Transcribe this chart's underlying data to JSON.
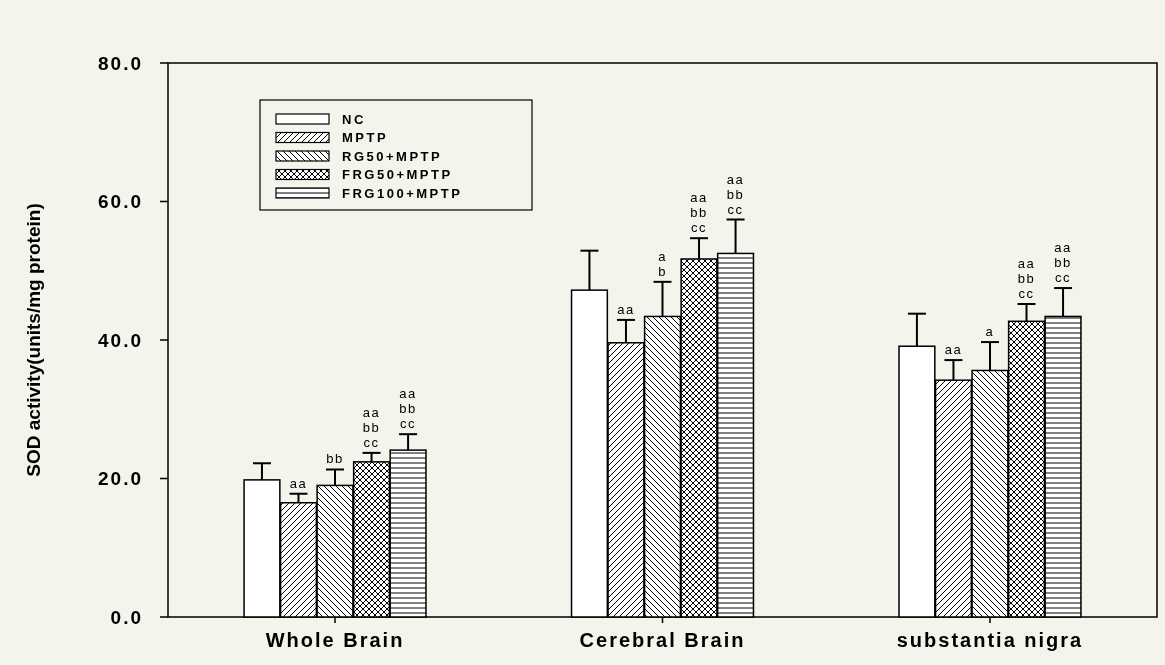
{
  "chart_data": {
    "type": "bar",
    "ylabel": "SOD activity(units/mg protein)",
    "categories": [
      "Whole Brain",
      "Cerebral Brain",
      "substantia nigra"
    ],
    "ylim": [
      0,
      80
    ],
    "yticks": [
      {
        "value": 0,
        "label": "0.0"
      },
      {
        "value": 20,
        "label": "20.0"
      },
      {
        "value": 40,
        "label": "40.0"
      },
      {
        "value": 60,
        "label": "60.0"
      },
      {
        "value": 80,
        "label": "80.0"
      }
    ],
    "legend": "top left",
    "series": [
      {
        "name": "NC",
        "color": "#ffffff",
        "values": [
          19.8,
          47.2,
          39.1
        ],
        "errors": [
          2.4,
          5.7,
          4.7
        ],
        "value_labels": [
          null,
          null,
          null
        ]
      },
      {
        "name": "MPTP",
        "color": "#ffffff",
        "values": [
          16.5,
          39.6,
          34.2
        ],
        "errors": [
          1.3,
          3.3,
          2.9
        ],
        "value_labels": [
          "aa",
          "aa",
          "aa"
        ]
      },
      {
        "name": "RG50+MPTP",
        "color": "#ffffff",
        "values": [
          19.0,
          43.4,
          35.6
        ],
        "errors": [
          2.3,
          5.0,
          4.1
        ],
        "value_labels": [
          "bb",
          "a\nb",
          "a"
        ]
      },
      {
        "name": "FRG50+MPTP",
        "color": "#ffffff",
        "values": [
          22.4,
          51.7,
          42.7
        ],
        "errors": [
          1.3,
          3.0,
          2.5
        ],
        "value_labels": [
          "aa\nbb\ncc",
          "aa\nbb\ncc",
          "aa\nbb\ncc"
        ]
      },
      {
        "name": "FRG100+MPTP",
        "color": "#ffffff",
        "values": [
          24.1,
          52.5,
          43.4
        ],
        "errors": [
          2.3,
          4.9,
          4.1
        ],
        "value_labels": [
          "aa\nbb\ncc",
          "aa\nbb\ncc",
          "aa\nbb\ncc"
        ]
      }
    ]
  }
}
